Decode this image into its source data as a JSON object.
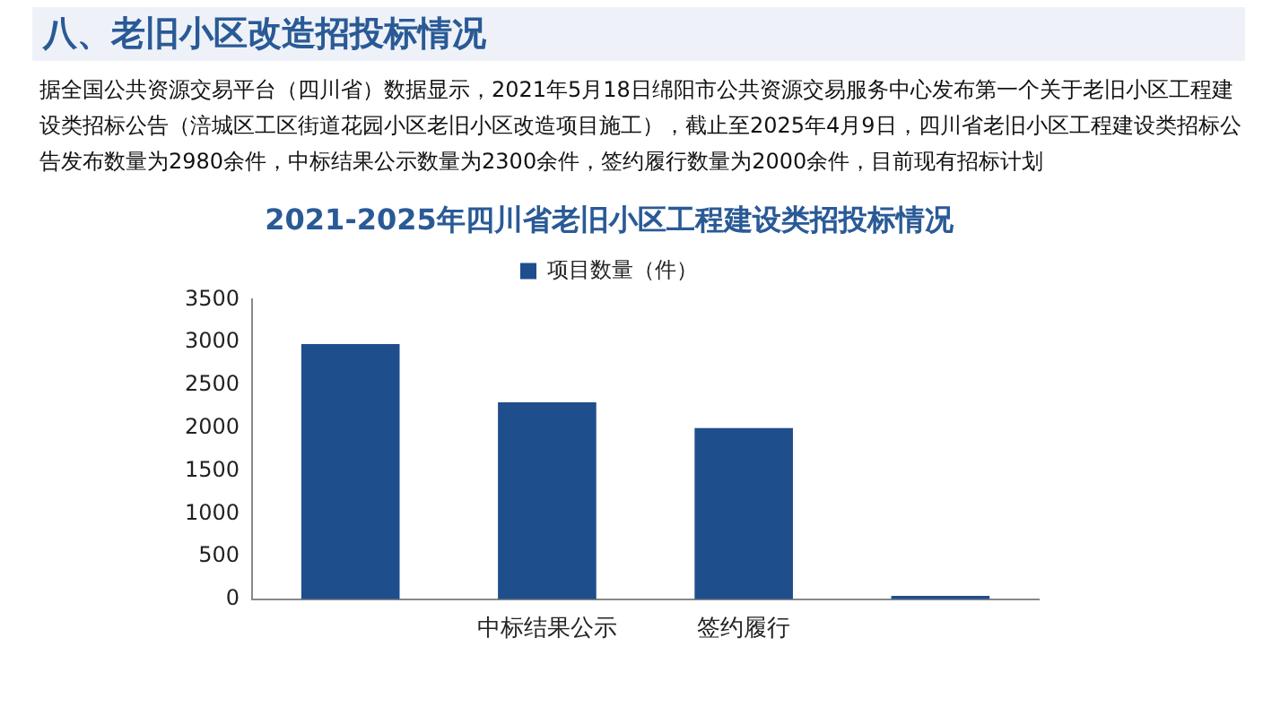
{
  "chart_data": {
    "type": "bar",
    "title": "2021-2025年四川省老旧小区工程建设类招投标情况",
    "annotations": [
      "八、老旧小区改造招投标情况",
      "据全国公共资源交易平台（四川省）数据显示，2021年5月18日绵阳市公共资源交易服务中心发布第一个关于老旧小区工程建设类招标公告（涪城区工区街道花园小区老旧小区改造项目施工），截止至2025年4月9日，四川省老旧小区工程建设类招标公告发布数量为2980余件，中标结果公示数量为2300余件，签约履行数量为2000余件，目前现有招标计划"
    ],
    "categories": [
      null,
      "中标结果公示",
      "签约履行",
      null
    ],
    "series": [
      {
        "name": "项目数量（件）",
        "color": "#1f4e8c",
        "values": [
          2980,
          2300,
          2000,
          40
        ]
      }
    ],
    "ylim": [
      0,
      3500
    ],
    "yticks": [
      0,
      500,
      1000,
      1500,
      2000,
      2500,
      3000,
      3500
    ],
    "grid": false,
    "legend": "top"
  }
}
